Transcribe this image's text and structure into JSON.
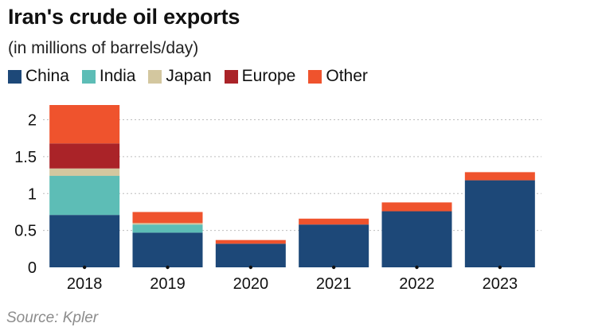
{
  "colors": {
    "China": "#1d4878",
    "India": "#5dbdb6",
    "Japan": "#d3c79f",
    "Europe": "#aa2328",
    "Other": "#ef532d",
    "grid": "#bdbdbd"
  },
  "source_label": "Source: Kpler",
  "chart_data": {
    "type": "bar",
    "stacked": true,
    "title": "Iran's crude oil exports",
    "subtitle": "(in millions of barrels/day)",
    "categories": [
      "2018",
      "2019",
      "2020",
      "2021",
      "2022",
      "2023"
    ],
    "series": [
      {
        "name": "China",
        "values": [
          0.71,
          0.47,
          0.32,
          0.58,
          0.76,
          1.18
        ]
      },
      {
        "name": "India",
        "values": [
          0.53,
          0.11,
          0.0,
          0.0,
          0.0,
          0.0
        ]
      },
      {
        "name": "Japan",
        "values": [
          0.1,
          0.02,
          0.0,
          0.0,
          0.0,
          0.0
        ]
      },
      {
        "name": "Europe",
        "values": [
          0.34,
          0.0,
          0.0,
          0.0,
          0.0,
          0.0
        ]
      },
      {
        "name": "Other",
        "values": [
          0.52,
          0.15,
          0.05,
          0.08,
          0.12,
          0.11
        ]
      }
    ],
    "yticks": [
      "0",
      "0.5",
      "1",
      "1.5",
      "2"
    ],
    "ylim": [
      0,
      2.2
    ],
    "xlabel": "",
    "ylabel": "",
    "grid": true,
    "legend_position": "top-left"
  }
}
